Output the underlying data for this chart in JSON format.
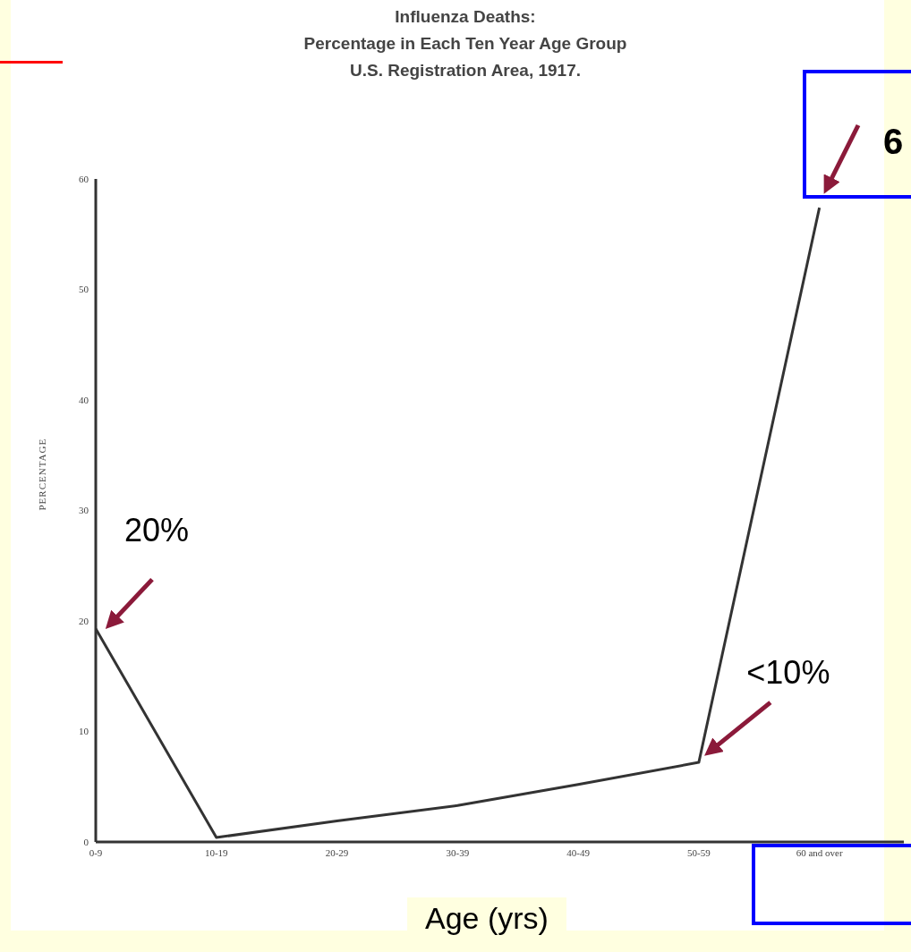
{
  "chart_data": {
    "type": "line",
    "title": "Influenza Deaths:",
    "subtitle": "Percentage in Each Ten Year Age Group\nU.S. Registration Area, 1917.",
    "xlabel": "Age (yrs)",
    "ylabel": "PERCENTAGE",
    "categories": [
      "0-9",
      "10-19",
      "20-29",
      "30-39",
      "40-49",
      "50-59",
      "60 and over"
    ],
    "series": [
      {
        "color": "#333333",
        "values": [
          19.3,
          0.4,
          1.9,
          3.3,
          5.2,
          7.2,
          57.4
        ]
      }
    ],
    "ylim": [
      0,
      60
    ],
    "yticks": [
      0,
      10,
      20,
      30,
      40,
      50,
      60
    ],
    "grid": false,
    "legend": false,
    "marker": "none",
    "line_style": "solid",
    "annotations": [
      {
        "text": "20%",
        "x": "0-9",
        "y": 19.3
      },
      {
        "text": "<10%",
        "x": "50-59",
        "y": 7.2
      },
      "6"
    ]
  }
}
